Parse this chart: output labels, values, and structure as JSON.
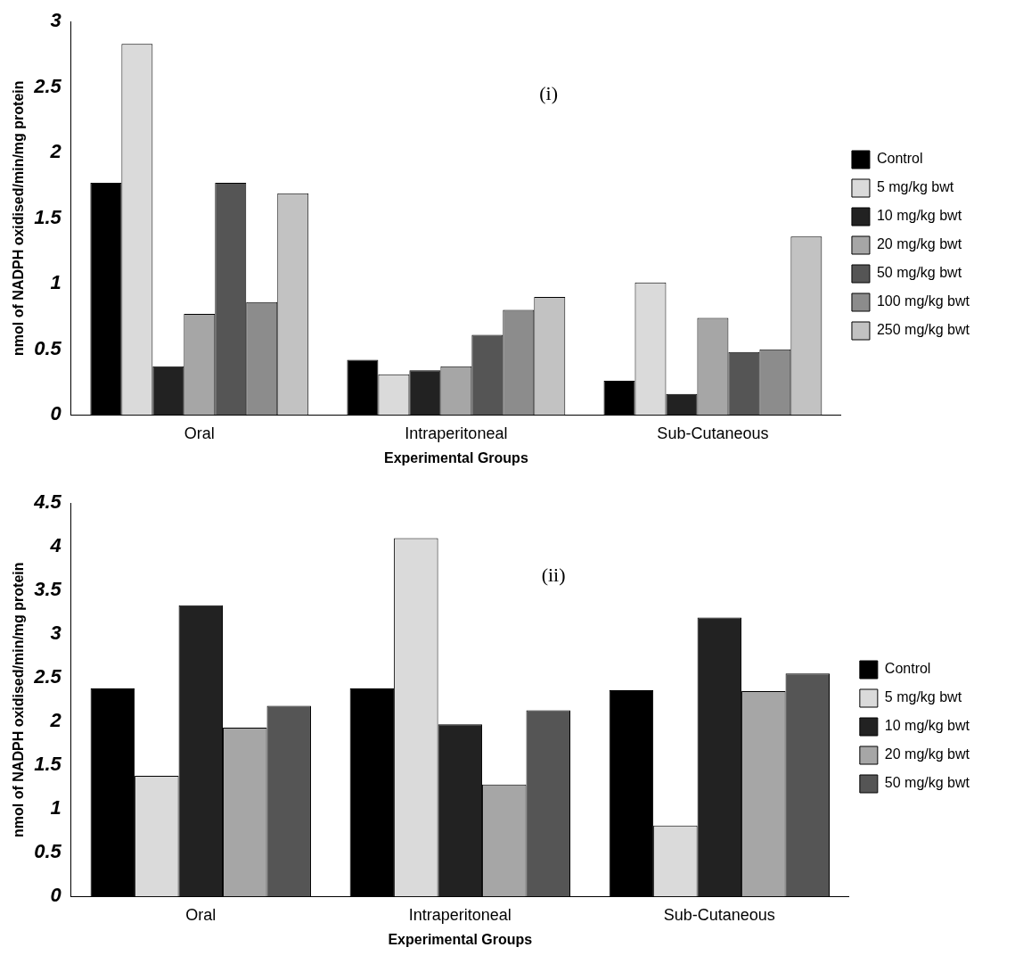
{
  "chart_data": [
    {
      "type": "bar",
      "annotations": [
        "(i)"
      ],
      "xlabel": "Experimental Groups",
      "ylabel": "nmol of NADPH oxidised/min/mg protein",
      "categories": [
        "Oral",
        "Intraperitoneal",
        "Sub-Cutaneous"
      ],
      "ylim": [
        0,
        3
      ],
      "yticks": [
        0,
        0.5,
        1,
        1.5,
        2,
        2.5,
        3
      ],
      "grid": false,
      "legend": "right",
      "series": [
        {
          "name": "Control",
          "color": "#000000",
          "values": [
            1.77,
            0.42,
            0.26
          ]
        },
        {
          "name": "5 mg/kg bwt",
          "color": "#dadada",
          "values": [
            2.83,
            0.31,
            1.01
          ]
        },
        {
          "name": "10 mg/kg bwt",
          "color": "#222222",
          "values": [
            0.37,
            0.34,
            0.16
          ]
        },
        {
          "name": "20 mg/kg bwt",
          "color": "#a6a6a6",
          "values": [
            0.77,
            0.37,
            0.74
          ]
        },
        {
          "name": "50 mg/kg bwt",
          "color": "#555555",
          "values": [
            1.77,
            0.61,
            0.48
          ]
        },
        {
          "name": "100 mg/kg bwt",
          "color": "#8c8c8c",
          "values": [
            0.86,
            0.8,
            0.5
          ]
        },
        {
          "name": "250 mg/kg bwt",
          "color": "#c2c2c2",
          "values": [
            1.69,
            0.9,
            1.36
          ]
        }
      ]
    },
    {
      "type": "bar",
      "annotations": [
        "(ii)"
      ],
      "xlabel": "Experimental Groups",
      "ylabel": "nmol of NADPH oxidised/min/mg protein",
      "categories": [
        "Oral",
        "Intraperitoneal",
        "Sub-Cutaneous"
      ],
      "ylim": [
        0,
        4.5
      ],
      "yticks": [
        0,
        0.5,
        1,
        1.5,
        2,
        2.5,
        3,
        3.5,
        4,
        4.5
      ],
      "grid": false,
      "legend": "right",
      "series": [
        {
          "name": "Control",
          "color": "#000000",
          "values": [
            2.38,
            2.38,
            2.36
          ]
        },
        {
          "name": "5 mg/kg bwt",
          "color": "#dadada",
          "values": [
            1.38,
            4.1,
            0.81
          ]
        },
        {
          "name": "10 mg/kg bwt",
          "color": "#222222",
          "values": [
            3.33,
            1.97,
            3.19
          ]
        },
        {
          "name": "20 mg/kg bwt",
          "color": "#a6a6a6",
          "values": [
            1.93,
            1.28,
            2.35
          ]
        },
        {
          "name": "50 mg/kg bwt",
          "color": "#555555",
          "values": [
            2.18,
            2.13,
            2.55
          ]
        }
      ]
    }
  ]
}
